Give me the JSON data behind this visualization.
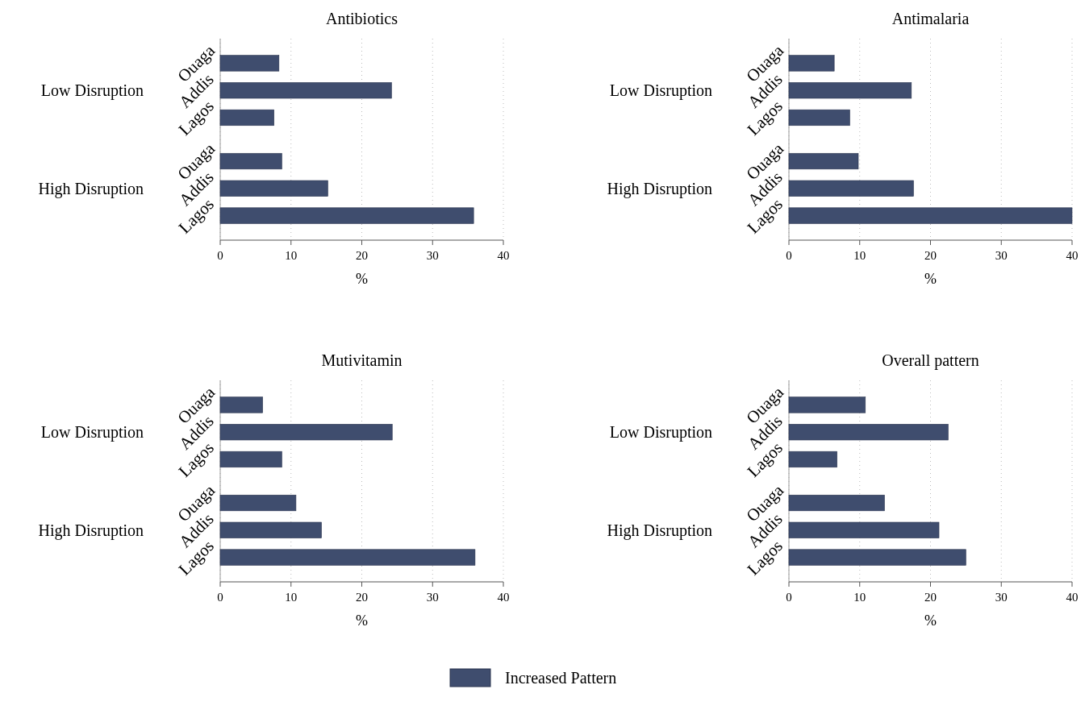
{
  "chart_data": [
    {
      "type": "bar",
      "title": "Antibiotics",
      "orientation": "horizontal",
      "categories": [
        "Ouaga",
        "Addis",
        "Lagos",
        "Ouaga",
        "Addis",
        "Lagos"
      ],
      "annotations": [
        "Low Disruption",
        "High Disruption"
      ],
      "xlabel": "%",
      "xlim": [
        0,
        40
      ],
      "xticks": [
        0,
        10,
        20,
        30,
        40
      ],
      "grid": "x",
      "legend": "bottom",
      "series": [
        {
          "name": "Increased Pattern",
          "color": "#3f4d6e",
          "values": [
            8.3,
            24.2,
            7.6,
            8.7,
            15.2,
            35.8
          ]
        }
      ]
    },
    {
      "type": "bar",
      "title": "Antimalaria",
      "orientation": "horizontal",
      "categories": [
        "Ouaga",
        "Addis",
        "Lagos",
        "Ouaga",
        "Addis",
        "Lagos"
      ],
      "annotations": [
        "Low Disruption",
        "High Disruption"
      ],
      "xlabel": "%",
      "xlim": [
        0,
        40
      ],
      "xticks": [
        0,
        10,
        20,
        30,
        40
      ],
      "grid": "x",
      "series": [
        {
          "color": "#3f4d6e",
          "values": [
            6.4,
            17.3,
            8.6,
            9.8,
            17.6,
            40
          ]
        }
      ]
    },
    {
      "type": "bar",
      "title": "Mutivitamin",
      "orientation": "horizontal",
      "categories": [
        "Ouaga",
        "Addis",
        "Lagos",
        "Ouaga",
        "Addis",
        "Lagos"
      ],
      "annotations": [
        "Low Disruption",
        "High Disruption"
      ],
      "xlabel": "%",
      "xlim": [
        0,
        40
      ],
      "xticks": [
        0,
        10,
        20,
        30,
        40
      ],
      "grid": "x",
      "series": [
        {
          "color": "#3f4d6e",
          "values": [
            6.0,
            24.3,
            8.7,
            10.7,
            14.3,
            36.0
          ]
        }
      ]
    },
    {
      "type": "bar",
      "title": "Overall pattern",
      "orientation": "horizontal",
      "categories": [
        "Ouaga",
        "Addis",
        "Lagos",
        "Ouaga",
        "Addis",
        "Lagos"
      ],
      "annotations": [
        "Low Disruption",
        "High Disruption"
      ],
      "xlabel": "%",
      "xlim": [
        0,
        40
      ],
      "xticks": [
        0,
        10,
        20,
        30,
        40
      ],
      "grid": "x",
      "series": [
        {
          "color": "#3f4d6e",
          "values": [
            10.8,
            22.5,
            6.8,
            13.5,
            21.2,
            25.0
          ]
        }
      ]
    }
  ]
}
